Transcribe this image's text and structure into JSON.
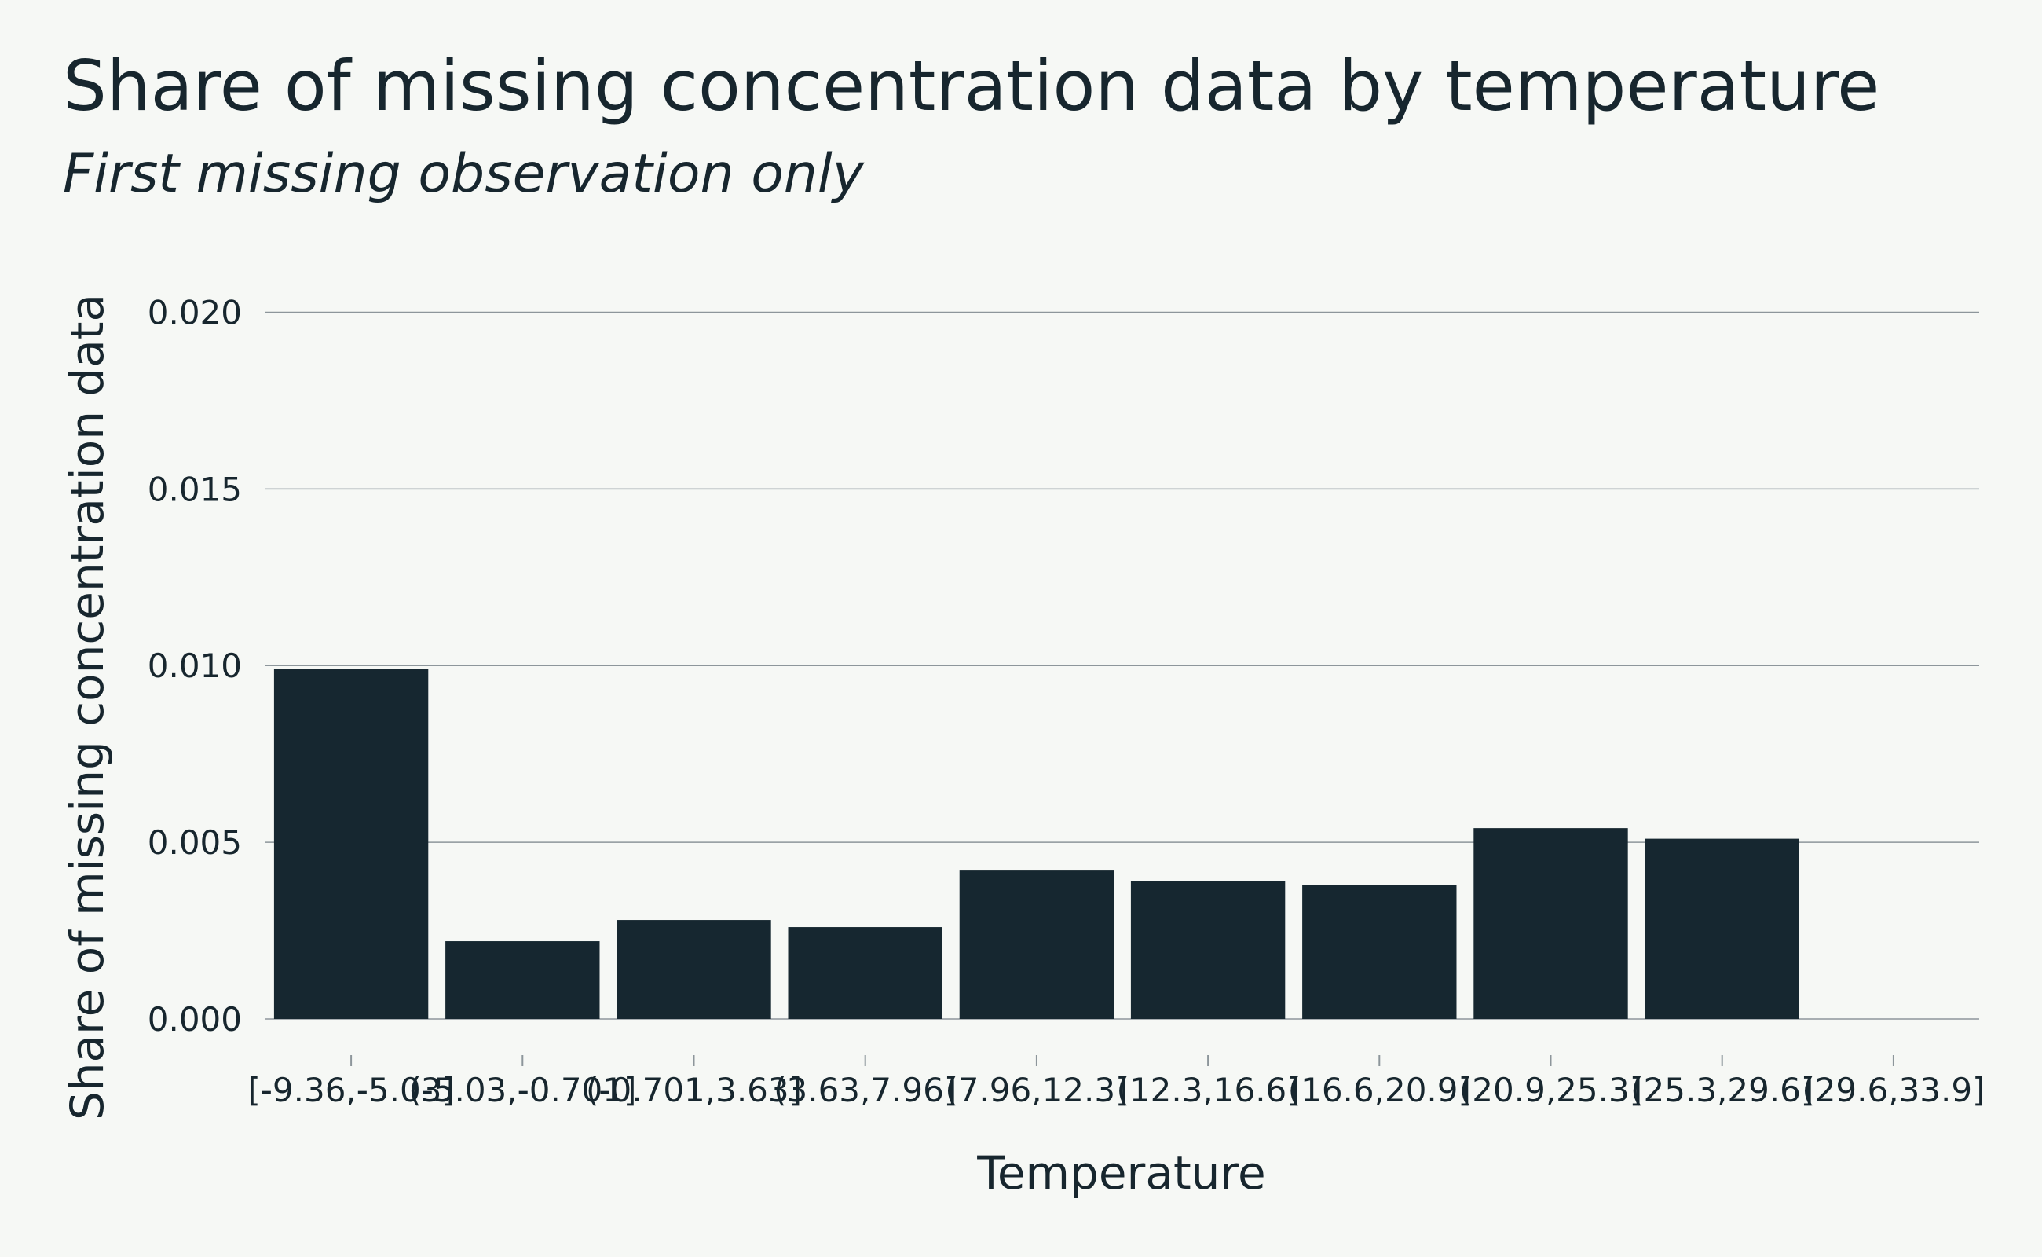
{
  "header": {
    "title": "Share of missing concentration data by temperature",
    "subtitle": "First missing observation only"
  },
  "chart_data": {
    "type": "bar",
    "title": "Share of missing concentration data by temperature",
    "subtitle": "First missing observation only",
    "xlabel": "Temperature",
    "ylabel": "Share of missing concentration data",
    "categories": [
      "[-9.36,-5.03]",
      "(-5.03,-0.701]",
      "(-0.701,3.63]",
      "(3.63,7.96]",
      "(7.96,12.3]",
      "(12.3,16.6]",
      "(16.6,20.9]",
      "(20.9,25.3]",
      "(25.3,29.6]",
      "(29.6,33.9]"
    ],
    "values": [
      0.0099,
      0.0022,
      0.0028,
      0.0026,
      0.0042,
      0.0039,
      0.0038,
      0.0054,
      0.0051,
      0
    ],
    "ylim": [
      0,
      0.0215
    ],
    "yticks": [
      0,
      0.005,
      0.01,
      0.015,
      0.02
    ],
    "ytick_labels": [
      "0.000",
      "0.005",
      "0.010",
      "0.015",
      "0.020"
    ],
    "grid": true,
    "bar_color": "#162730",
    "background_color": "#f6f8f5"
  }
}
